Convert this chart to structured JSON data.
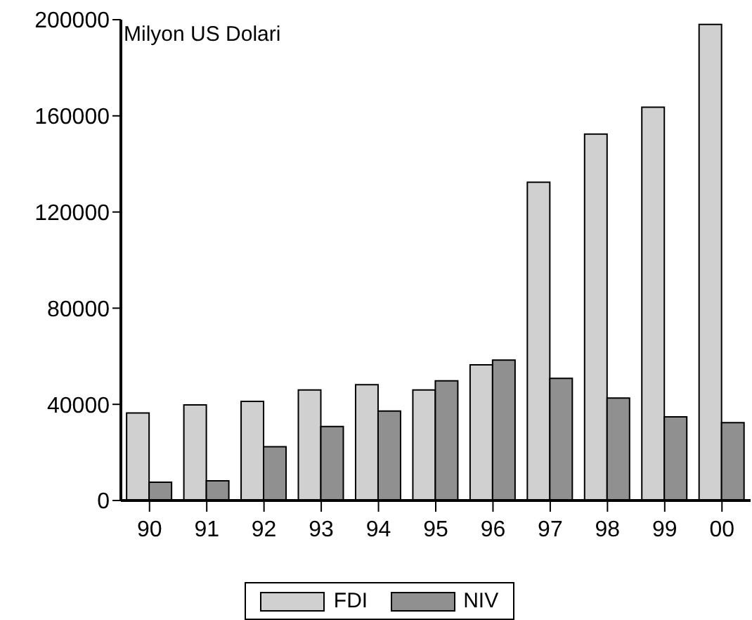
{
  "chart_data": {
    "type": "bar",
    "ylabel": "Milyon US Dolari",
    "categories": [
      "90",
      "91",
      "92",
      "93",
      "94",
      "95",
      "96",
      "97",
      "98",
      "99",
      "00"
    ],
    "series": [
      {
        "name": "FDI",
        "color": "#d0d0d0",
        "values": [
          36400,
          39800,
          41200,
          46000,
          48200,
          46000,
          56400,
          132400,
          152400,
          163600,
          198000
        ]
      },
      {
        "name": "NIV",
        "color": "#909090",
        "values": [
          7600,
          8200,
          22400,
          30800,
          37200,
          49800,
          58400,
          50800,
          42600,
          34800,
          32400
        ]
      }
    ],
    "ylim": [
      0,
      200000
    ],
    "yticks": [
      0,
      40000,
      80000,
      120000,
      160000,
      200000
    ],
    "grid": false,
    "legend": "bottom"
  }
}
